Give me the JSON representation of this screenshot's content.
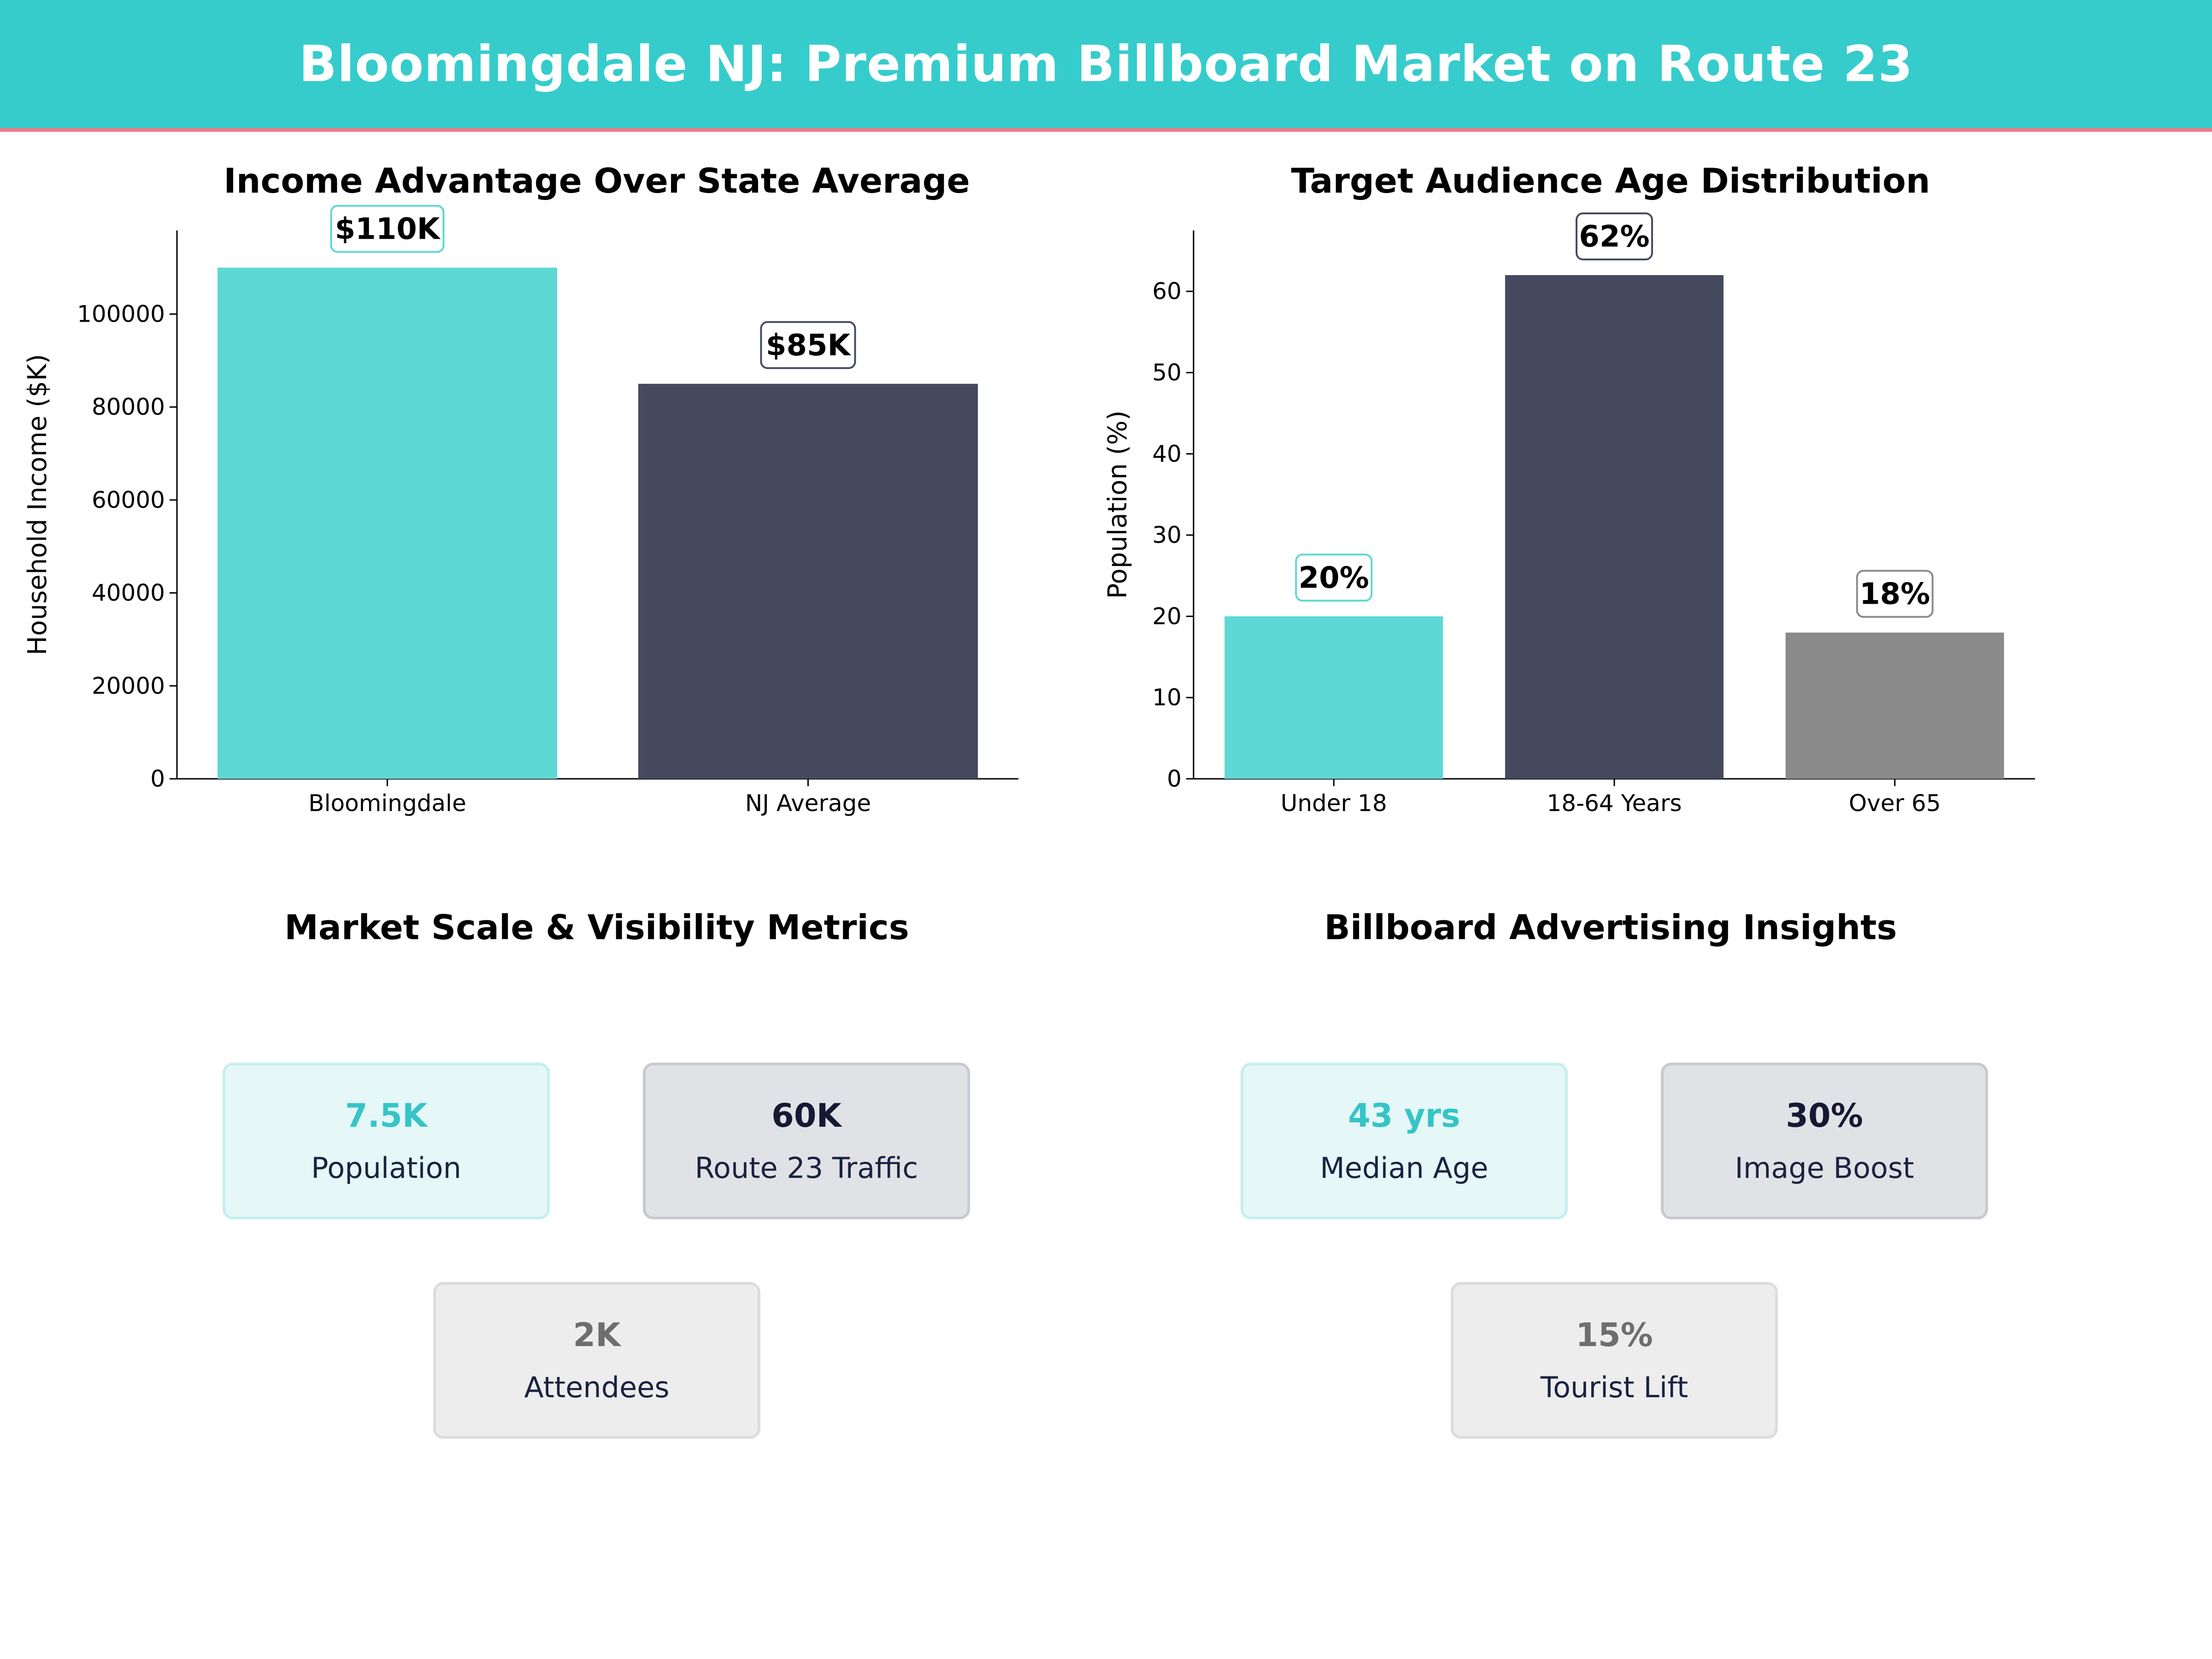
{
  "header": {
    "title": "Bloomingdale NJ: Premium Billboard Market on Route 23"
  },
  "colors": {
    "teal": "#5dd8d5",
    "navy": "#464a5f",
    "gray": "#8a8a8a",
    "header_bg": "#36cccc",
    "accent_line": "#ef7b86"
  },
  "chart_data": [
    {
      "type": "bar",
      "title": "Income Advantage Over State Average",
      "categories": [
        "Bloomingdale",
        "NJ Average"
      ],
      "values": [
        110000,
        85000
      ],
      "value_labels": [
        "$110K",
        "$85K"
      ],
      "bar_colors": [
        "#5dd8d5",
        "#464a5f"
      ],
      "label_box_colors": [
        "#5dd8d5",
        "#464a5f"
      ],
      "xlabel": "",
      "ylabel": "Household Income ($K)",
      "ylim": [
        0,
        118000
      ],
      "yticks": [
        0,
        20000,
        40000,
        60000,
        80000,
        100000
      ],
      "grid": false
    },
    {
      "type": "bar",
      "title": "Target Audience Age Distribution",
      "categories": [
        "Under 18",
        "18-64 Years",
        "Over 65"
      ],
      "values": [
        20,
        62,
        18
      ],
      "value_labels": [
        "20%",
        "62%",
        "18%"
      ],
      "bar_colors": [
        "#5dd8d5",
        "#464a5f",
        "#8a8a8a"
      ],
      "label_box_colors": [
        "#5dd8d5",
        "#464a5f",
        "#8a8a8a"
      ],
      "xlabel": "",
      "ylabel": "Population (%)",
      "ylim": [
        0,
        67.5
      ],
      "yticks": [
        0,
        10,
        20,
        30,
        40,
        50,
        60
      ],
      "grid": false
    }
  ],
  "market_metrics": {
    "title": "Market Scale & Visibility Metrics",
    "cards": [
      {
        "value": "7.5K",
        "label": "Population",
        "style": "teal"
      },
      {
        "value": "60K",
        "label": "Route 23 Traffic",
        "style": "navy"
      },
      {
        "value": "2K",
        "label": "Attendees",
        "style": "gray"
      }
    ]
  },
  "insights": {
    "title": "Billboard Advertising Insights",
    "cards": [
      {
        "value": "43 yrs",
        "label": "Median Age",
        "style": "teal"
      },
      {
        "value": "30%",
        "label": "Image Boost",
        "style": "navy"
      },
      {
        "value": "15%",
        "label": "Tourist Lift",
        "style": "gray"
      }
    ]
  }
}
